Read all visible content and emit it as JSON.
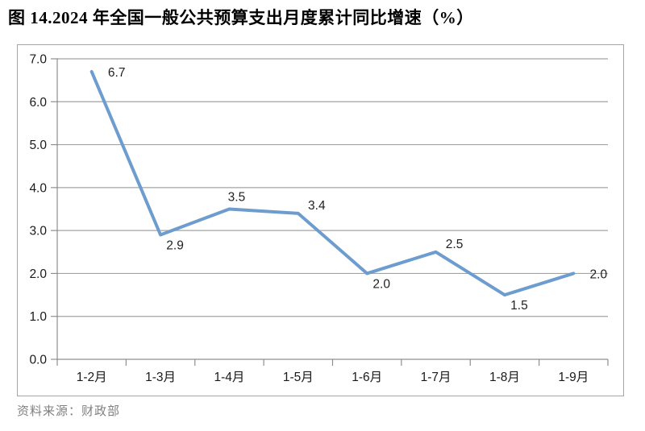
{
  "page": {
    "title": "图 14.2024 年全国一般公共预算支出月度累计同比增速（%）",
    "source": "资料来源：财政部"
  },
  "chart_data": {
    "type": "line",
    "title": "图 14.2024 年全国一般公共预算支出月度累计同比增速（%）",
    "categories": [
      "1-2月",
      "1-3月",
      "1-4月",
      "1-5月",
      "1-6月",
      "1-7月",
      "1-8月",
      "1-9月"
    ],
    "values": [
      6.7,
      2.9,
      3.5,
      3.4,
      2.0,
      2.5,
      1.5,
      2.0
    ],
    "data_labels": [
      "6.7",
      "2.9",
      "3.5",
      "3.4",
      "2.0",
      "2.5",
      "1.5",
      "2.0"
    ],
    "label_placements": [
      "right",
      "below-right",
      "above",
      "above-right",
      "below-right",
      "above-right",
      "below-right",
      "right"
    ],
    "xlabel": "",
    "ylabel": "",
    "ylim": [
      0,
      7
    ],
    "ytick_step": 1,
    "ytick_labels": [
      "0.0",
      "1.0",
      "2.0",
      "3.0",
      "4.0",
      "5.0",
      "6.0",
      "7.0"
    ],
    "grid": true,
    "legend": "none",
    "colors": {
      "line": "#6d9ccf",
      "grid": "#a3a3a3",
      "axis": "#8f8f8f",
      "frame_border": "#a4a4a4",
      "tick_text": "#1a1a1a",
      "data_label_text": "#1f1f1f",
      "source_text": "#808080"
    }
  }
}
